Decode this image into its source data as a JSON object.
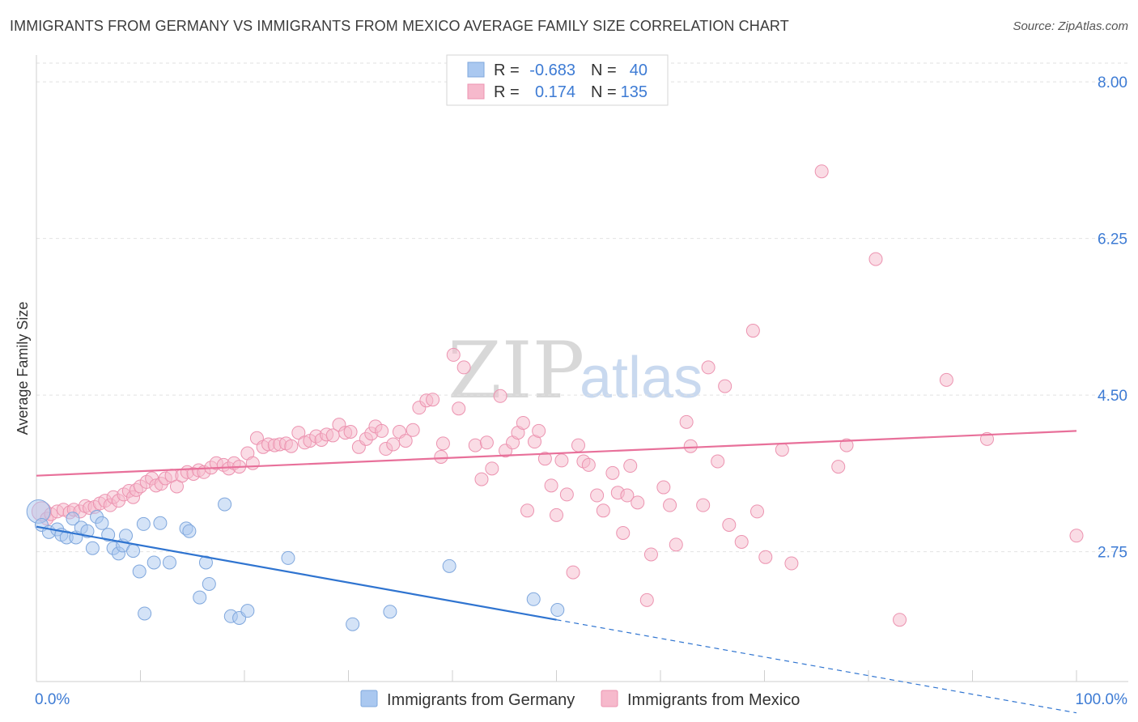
{
  "title": "IMMIGRANTS FROM GERMANY VS IMMIGRANTS FROM MEXICO AVERAGE FAMILY SIZE CORRELATION CHART",
  "source": "Source: ZipAtlas.com",
  "watermark": {
    "zip": "ZIP",
    "atlas": "atlas"
  },
  "colors": {
    "germany_fill": "#aac8f0",
    "germany_stroke": "#7fa7dd",
    "germany_line": "#2f74d0",
    "mexico_fill": "#f6b9cc",
    "mexico_stroke": "#ec93b0",
    "mexico_line": "#e8709a",
    "tick_text": "#3d7bd4",
    "grid": "#e2e2e2"
  },
  "legend": {
    "rows": [
      {
        "series": "germany",
        "r_label": "R =",
        "r_value": "-0.683",
        "n_label": "N =",
        "n_value": "40"
      },
      {
        "series": "mexico",
        "r_label": "R =",
        "r_value": "0.174",
        "n_label": "N =",
        "n_value": "135"
      }
    ]
  },
  "chart_data": {
    "type": "scatter",
    "title": "IMMIGRANTS FROM GERMANY VS IMMIGRANTS FROM MEXICO AVERAGE FAMILY SIZE CORRELATION CHART",
    "xlabel": "",
    "ylabel": "Average Family Size",
    "xlim": [
      0,
      100
    ],
    "ylim": [
      1.3,
      8.3
    ],
    "x_tick_labels": [
      "0.0%",
      "100.0%"
    ],
    "y_ticks": [
      2.75,
      4.5,
      6.25,
      8.0
    ],
    "y_tick_labels": [
      "2.75",
      "4.50",
      "6.25",
      "8.00"
    ],
    "grid": true,
    "legend_position": "bottom",
    "series": [
      {
        "name": "Immigrants from Germany",
        "key": "germany",
        "r": -0.683,
        "n": 40,
        "trend": {
          "x0": 0,
          "y0": 3.03,
          "x1": 50,
          "y1": 1.99,
          "dash_to_x": 100,
          "dash_to_y": 0.95
        },
        "points": [
          [
            0.2,
            3.2,
            1.8
          ],
          [
            0.5,
            3.05,
            1
          ],
          [
            1.2,
            2.97,
            1
          ],
          [
            2,
            3.0,
            1
          ],
          [
            2.4,
            2.94,
            1
          ],
          [
            2.9,
            2.91,
            1
          ],
          [
            3.5,
            3.12,
            1
          ],
          [
            3.8,
            2.91,
            1
          ],
          [
            4.3,
            3.02,
            1
          ],
          [
            4.9,
            2.98,
            1
          ],
          [
            5.4,
            2.79,
            1
          ],
          [
            5.8,
            3.14,
            1
          ],
          [
            6.3,
            3.07,
            1
          ],
          [
            6.9,
            2.94,
            1
          ],
          [
            7.4,
            2.79,
            1
          ],
          [
            7.9,
            2.73,
            1
          ],
          [
            8.3,
            2.82,
            1
          ],
          [
            8.6,
            2.93,
            1
          ],
          [
            9.3,
            2.76,
            1
          ],
          [
            9.9,
            2.53,
            1
          ],
          [
            10.4,
            2.06,
            1
          ],
          [
            10.3,
            3.06,
            1
          ],
          [
            11.3,
            2.63,
            1
          ],
          [
            11.9,
            3.07,
            1
          ],
          [
            12.8,
            2.63,
            1
          ],
          [
            14.4,
            3.01,
            1
          ],
          [
            14.7,
            2.98,
            1
          ],
          [
            15.7,
            2.24,
            1
          ],
          [
            16.3,
            2.63,
            1
          ],
          [
            16.6,
            2.39,
            1
          ],
          [
            18.1,
            3.28,
            1
          ],
          [
            18.7,
            2.03,
            1
          ],
          [
            19.5,
            2.01,
            1
          ],
          [
            20.3,
            2.09,
            1
          ],
          [
            24.2,
            2.68,
            1
          ],
          [
            30.4,
            1.94,
            1
          ],
          [
            34,
            2.08,
            1
          ],
          [
            39.7,
            2.59,
            1
          ],
          [
            47.8,
            2.22,
            1
          ],
          [
            50.1,
            2.1,
            1
          ]
        ]
      },
      {
        "name": "Immigrants from Mexico",
        "key": "mexico",
        "r": 0.174,
        "n": 135,
        "trend": {
          "x0": 0,
          "y0": 3.6,
          "x1": 100,
          "y1": 4.1
        },
        "points": [
          [
            0.5,
            3.2,
            1.5
          ],
          [
            1,
            3.12,
            1
          ],
          [
            1.4,
            3.17,
            1
          ],
          [
            2,
            3.2,
            1
          ],
          [
            2.6,
            3.22,
            1
          ],
          [
            3.2,
            3.19,
            1
          ],
          [
            3.6,
            3.22,
            1
          ],
          [
            4.2,
            3.2,
            1
          ],
          [
            4.7,
            3.26,
            1
          ],
          [
            5.1,
            3.24,
            1
          ],
          [
            5.6,
            3.25,
            1
          ],
          [
            6.1,
            3.29,
            1
          ],
          [
            6.6,
            3.32,
            1
          ],
          [
            7.1,
            3.27,
            1
          ],
          [
            7.4,
            3.36,
            1
          ],
          [
            7.9,
            3.32,
            1
          ],
          [
            8.4,
            3.39,
            1
          ],
          [
            8.9,
            3.43,
            1
          ],
          [
            9.3,
            3.36,
            1
          ],
          [
            9.6,
            3.44,
            1
          ],
          [
            10,
            3.48,
            1
          ],
          [
            10.6,
            3.53,
            1
          ],
          [
            11.1,
            3.57,
            1
          ],
          [
            11.5,
            3.49,
            1
          ],
          [
            12,
            3.51,
            1
          ],
          [
            12.4,
            3.57,
            1
          ],
          [
            13,
            3.6,
            1
          ],
          [
            13.5,
            3.48,
            1
          ],
          [
            14,
            3.6,
            1
          ],
          [
            14.5,
            3.64,
            1
          ],
          [
            15.1,
            3.62,
            1
          ],
          [
            15.6,
            3.66,
            1
          ],
          [
            16.1,
            3.64,
            1
          ],
          [
            16.8,
            3.69,
            1
          ],
          [
            17.3,
            3.74,
            1
          ],
          [
            18,
            3.72,
            1
          ],
          [
            18.5,
            3.68,
            1
          ],
          [
            19,
            3.74,
            1
          ],
          [
            19.5,
            3.7,
            1
          ],
          [
            20.3,
            3.85,
            1
          ],
          [
            20.8,
            3.74,
            1
          ],
          [
            21.2,
            4.02,
            1
          ],
          [
            21.8,
            3.92,
            1
          ],
          [
            22.3,
            3.95,
            1
          ],
          [
            22.9,
            3.94,
            1
          ],
          [
            23.4,
            3.95,
            1
          ],
          [
            24,
            3.96,
            1
          ],
          [
            24.5,
            3.93,
            1
          ],
          [
            25.2,
            4.08,
            1
          ],
          [
            25.8,
            3.97,
            1
          ],
          [
            26.3,
            3.99,
            1
          ],
          [
            26.9,
            4.04,
            1
          ],
          [
            27.4,
            4.0,
            1
          ],
          [
            27.9,
            4.06,
            1
          ],
          [
            28.5,
            4.05,
            1
          ],
          [
            29.1,
            4.17,
            1
          ],
          [
            29.7,
            4.08,
            1
          ],
          [
            30.2,
            4.09,
            1
          ],
          [
            31,
            3.92,
            1
          ],
          [
            31.7,
            4.01,
            1
          ],
          [
            32.2,
            4.07,
            1
          ],
          [
            32.6,
            4.15,
            1
          ],
          [
            33.2,
            4.1,
            1
          ],
          [
            33.6,
            3.9,
            1
          ],
          [
            34.3,
            3.95,
            1
          ],
          [
            34.9,
            4.09,
            1
          ],
          [
            35.5,
            3.99,
            1
          ],
          [
            36.2,
            4.11,
            1
          ],
          [
            36.8,
            4.36,
            1
          ],
          [
            37.5,
            4.44,
            1
          ],
          [
            38.1,
            4.45,
            1
          ],
          [
            38.9,
            3.81,
            1
          ],
          [
            39.1,
            3.96,
            1
          ],
          [
            40.1,
            4.95,
            1
          ],
          [
            40.6,
            4.35,
            1
          ],
          [
            41.1,
            4.81,
            1
          ],
          [
            42.2,
            3.94,
            1
          ],
          [
            42.8,
            3.56,
            1
          ],
          [
            43.3,
            3.97,
            1
          ],
          [
            43.8,
            3.68,
            1
          ],
          [
            44.6,
            4.49,
            1
          ],
          [
            45.1,
            3.88,
            1
          ],
          [
            45.8,
            3.97,
            1
          ],
          [
            46.3,
            4.08,
            1
          ],
          [
            46.8,
            4.19,
            1
          ],
          [
            47.2,
            3.21,
            1
          ],
          [
            47.9,
            3.98,
            1
          ],
          [
            48.3,
            4.1,
            1
          ],
          [
            48.9,
            3.79,
            1
          ],
          [
            49.5,
            3.49,
            1
          ],
          [
            50,
            3.16,
            1
          ],
          [
            50.5,
            3.77,
            1
          ],
          [
            51,
            3.39,
            1
          ],
          [
            51.6,
            2.52,
            1
          ],
          [
            52.1,
            3.94,
            1
          ],
          [
            52.6,
            3.76,
            1
          ],
          [
            53.1,
            3.72,
            1
          ],
          [
            53.9,
            3.38,
            1
          ],
          [
            54.5,
            3.21,
            1
          ],
          [
            55.4,
            3.63,
            1
          ],
          [
            55.9,
            3.41,
            1
          ],
          [
            56.4,
            2.96,
            1
          ],
          [
            56.8,
            3.38,
            1
          ],
          [
            57.1,
            3.71,
            1
          ],
          [
            57.8,
            3.3,
            1
          ],
          [
            58.7,
            2.21,
            1
          ],
          [
            59.1,
            2.72,
            1
          ],
          [
            60.3,
            3.47,
            1
          ],
          [
            60.9,
            3.27,
            1
          ],
          [
            61.5,
            2.83,
            1
          ],
          [
            62.5,
            4.2,
            1
          ],
          [
            62.9,
            3.93,
            1
          ],
          [
            64.1,
            3.27,
            1
          ],
          [
            64.6,
            4.81,
            1
          ],
          [
            65.5,
            3.76,
            1
          ],
          [
            66.2,
            4.6,
            1
          ],
          [
            66.6,
            3.05,
            1
          ],
          [
            67.8,
            2.86,
            1
          ],
          [
            68.9,
            5.22,
            1
          ],
          [
            69.3,
            3.2,
            1
          ],
          [
            70.1,
            2.69,
            1
          ],
          [
            71.7,
            3.89,
            1
          ],
          [
            72.6,
            2.62,
            1
          ],
          [
            75.5,
            7.0,
            1
          ],
          [
            77.1,
            3.7,
            1
          ],
          [
            77.9,
            3.94,
            1
          ],
          [
            80.7,
            6.02,
            1
          ],
          [
            83,
            1.99,
            1
          ],
          [
            87.5,
            4.67,
            1
          ],
          [
            91.4,
            4.01,
            1
          ],
          [
            100,
            2.93,
            1
          ]
        ]
      }
    ]
  },
  "bottom_legend": [
    {
      "series": "germany",
      "label": "Immigrants from Germany"
    },
    {
      "series": "mexico",
      "label": "Immigrants from Mexico"
    }
  ]
}
